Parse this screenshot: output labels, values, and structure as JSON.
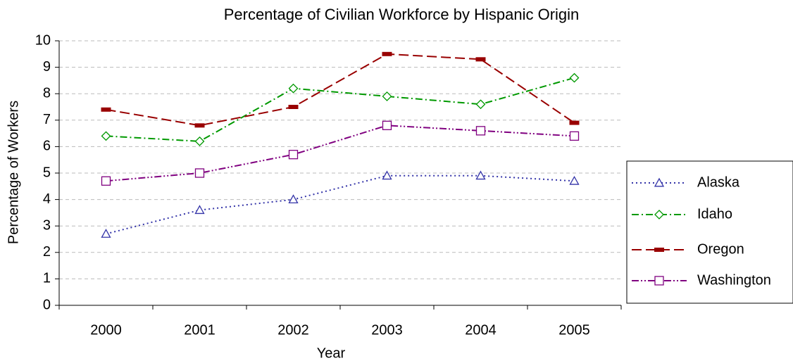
{
  "chart_data": {
    "type": "line",
    "title": "Percentage of Civilian Workforce by Hispanic Origin",
    "x_label": "Year",
    "y_label": "Percentage of Workers",
    "categories": [
      "2000",
      "2001",
      "2002",
      "2003",
      "2004",
      "2005"
    ],
    "series": [
      {
        "name": "Alaska",
        "color": "#3333a8",
        "dash": "2 4",
        "marker": "triangle",
        "values": [
          2.7,
          3.6,
          4.0,
          4.9,
          4.9,
          4.7
        ]
      },
      {
        "name": "Idaho",
        "color": "#009900",
        "dash": "10 4 2 4",
        "marker": "diamond",
        "values": [
          6.4,
          6.2,
          8.2,
          7.9,
          7.6,
          8.6
        ]
      },
      {
        "name": "Oregon",
        "color": "#990000",
        "dash": "14 6",
        "marker": "bar",
        "values": [
          7.4,
          6.8,
          7.5,
          9.5,
          9.3,
          6.9
        ]
      },
      {
        "name": "Washington",
        "color": "#800080",
        "dash": "10 3 2 3 2 3",
        "marker": "square",
        "values": [
          4.7,
          5.0,
          5.7,
          6.8,
          6.6,
          6.4
        ]
      }
    ],
    "ylim": [
      0,
      10
    ],
    "yticks": [
      0,
      1,
      2,
      3,
      4,
      5,
      6,
      7,
      8,
      9,
      10
    ],
    "grid": true,
    "legend": "right"
  }
}
